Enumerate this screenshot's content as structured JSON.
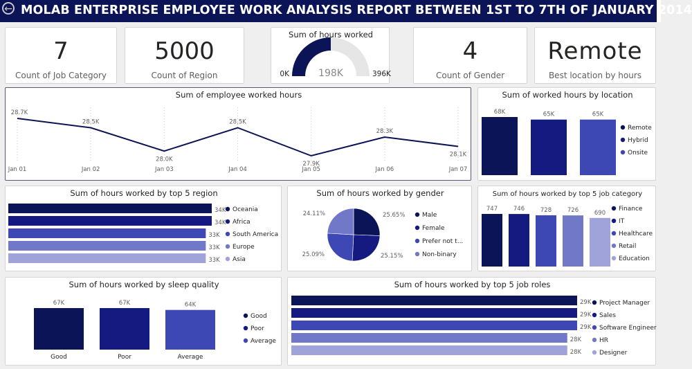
{
  "header": {
    "title": "MOLAB ENTERPRISE EMPLOYEE WORK ANALYSIS REPORT BETWEEN 1ST TO 7TH OF JANUARY 2014",
    "back_icon": "back-arrow-icon"
  },
  "colors": {
    "c1": "#0b1457",
    "c2": "#141a80",
    "c3": "#3e48b4",
    "c4": "#7178c7",
    "c5": "#9fa3da",
    "gauge_track": "#e6e6e6"
  },
  "kpis": {
    "job_category": {
      "value": "7",
      "label": "Count of Job Category"
    },
    "region": {
      "value": "5000",
      "label": "Count of Region"
    },
    "gender": {
      "value": "4",
      "label": "Count of Gender"
    },
    "location": {
      "value": "Remote",
      "label": "Best  location by hours"
    }
  },
  "chart_data": [
    {
      "id": "gauge",
      "type": "gauge",
      "title": "Sum of hours worked",
      "value": 198000,
      "value_label": "198K",
      "min": 0,
      "max": 396000,
      "min_label": "0K",
      "max_label": "396K"
    },
    {
      "id": "line",
      "type": "line",
      "title": "Sum of employee worked hours",
      "x": [
        "Jan 01",
        "Jan 02",
        "Jan 03",
        "Jan 04",
        "Jan 05",
        "Jan 06",
        "Jan 07"
      ],
      "values": [
        28700,
        28500,
        28000,
        28500,
        27900,
        28300,
        28100
      ],
      "labels": [
        "28.7K",
        "28.5K",
        "28.0K",
        "28.5K",
        "27.9K",
        "28.3K",
        "28.1K"
      ]
    },
    {
      "id": "location",
      "type": "bar",
      "title": "Sum of worked hours by location",
      "categories": [
        "Remote",
        "Hybrid",
        "Onsite"
      ],
      "values": [
        68000,
        65000,
        65000
      ],
      "labels": [
        "68K",
        "65K",
        "65K"
      ],
      "legend": [
        "Remote",
        "Hybrid",
        "Onsite"
      ]
    },
    {
      "id": "region",
      "type": "bar",
      "orientation": "horizontal",
      "title": "Sum of hours worked by top 5 region",
      "categories": [
        "Oceania",
        "Africa",
        "South America",
        "Europe",
        "Asia"
      ],
      "values": [
        34000,
        34000,
        33000,
        33000,
        33000
      ],
      "labels": [
        "34K",
        "34K",
        "33K",
        "33K",
        "33K"
      ],
      "legend": [
        "Oceania",
        "Africa",
        "South America",
        "Europe",
        "Asia"
      ]
    },
    {
      "id": "gender",
      "type": "pie",
      "title": "Sum of hours worked by gender",
      "categories": [
        "Male",
        "Female",
        "Prefer not t...",
        "Non-binary"
      ],
      "values": [
        25.65,
        25.15,
        25.09,
        24.11
      ],
      "labels": [
        "25.65%",
        "25.15%",
        "25.09%",
        "24.11%"
      ],
      "legend": [
        "Male",
        "Female",
        "Prefer not t...",
        "Non-binary"
      ]
    },
    {
      "id": "jobcat",
      "type": "bar",
      "title": "Sum of hours worked by top 5 job category",
      "categories": [
        "Finance",
        "IT",
        "Healthcare",
        "Retail",
        "Education"
      ],
      "values": [
        747,
        746,
        728,
        726,
        690
      ],
      "labels": [
        "747",
        "746",
        "728",
        "726",
        "690"
      ],
      "legend": [
        "Finance",
        "IT",
        "Healthcare",
        "Retail",
        "Education"
      ]
    },
    {
      "id": "sleep",
      "type": "bar",
      "title": "Sum of hours worked by sleep quality",
      "categories": [
        "Good",
        "Poor",
        "Average"
      ],
      "values": [
        67000,
        67000,
        64000
      ],
      "labels": [
        "67K",
        "67K",
        "64K"
      ],
      "legend": [
        "Good",
        "Poor",
        "Average"
      ]
    },
    {
      "id": "roles",
      "type": "bar",
      "orientation": "horizontal",
      "title": "Sum of hours worked by top 5 job roles",
      "categories": [
        "Project Manager",
        "Sales",
        "Software Engineer",
        "HR",
        "Designer"
      ],
      "values": [
        29000,
        29000,
        29000,
        28000,
        28000
      ],
      "labels": [
        "29K",
        "29K",
        "29K",
        "28K",
        "28K"
      ],
      "legend": [
        "Project Manager",
        "Sales",
        "Software Engineer",
        "HR",
        "Designer"
      ]
    }
  ]
}
